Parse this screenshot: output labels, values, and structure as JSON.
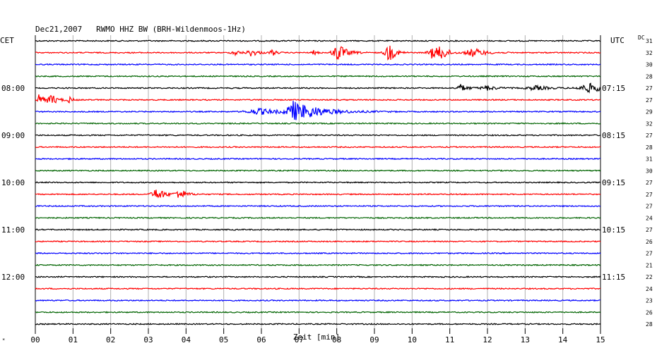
{
  "chart_data": {
    "type": "line",
    "title": "Dec21,2007   RWMO HHZ BW (BRH-Wildenmoos-1Hz)",
    "left_header": "CET",
    "right_header": "UTC",
    "dc_header": "DC",
    "xlabel": "Zeit [min]",
    "xlim": [
      0,
      15
    ],
    "x_ticks": [
      "00",
      "01",
      "02",
      "03",
      "04",
      "05",
      "06",
      "07",
      "08",
      "09",
      "10",
      "11",
      "12",
      "13",
      "14",
      "15"
    ],
    "grid": true,
    "trace_colors": [
      "#000000",
      "#ff0000",
      "#0000ff",
      "#006400"
    ],
    "hour_marks": [
      {
        "trace": 4,
        "cet": "08:00",
        "utc": "07:15"
      },
      {
        "trace": 8,
        "cet": "09:00",
        "utc": "08:15"
      },
      {
        "trace": 12,
        "cet": "10:00",
        "utc": "09:15"
      },
      {
        "trace": 16,
        "cet": "11:00",
        "utc": "10:15"
      },
      {
        "trace": 20,
        "cet": "12:00",
        "utc": "11:15"
      }
    ],
    "dc_values": [
      "31",
      "32",
      "30",
      "28",
      "27",
      "27",
      "29",
      "32",
      "27",
      "28",
      "31",
      "30",
      "27",
      "27",
      "27",
      "24",
      "27",
      "26",
      "27",
      "21",
      "22",
      "24",
      "23",
      "26",
      "28"
    ],
    "events": [
      {
        "trace": 1,
        "t": 5.3,
        "amp": 4,
        "dur": 0.15
      },
      {
        "trace": 1,
        "t": 5.75,
        "amp": 5,
        "dur": 0.2
      },
      {
        "trace": 1,
        "t": 6.3,
        "amp": 5,
        "dur": 0.1
      },
      {
        "trace": 1,
        "t": 7.4,
        "amp": 3,
        "dur": 0.1
      },
      {
        "trace": 1,
        "t": 8.05,
        "amp": 12,
        "dur": 0.25
      },
      {
        "trace": 1,
        "t": 9.4,
        "amp": 12,
        "dur": 0.2
      },
      {
        "trace": 1,
        "t": 10.55,
        "amp": 8,
        "dur": 0.2
      },
      {
        "trace": 1,
        "t": 10.8,
        "amp": 9,
        "dur": 0.2
      },
      {
        "trace": 1,
        "t": 11.65,
        "amp": 6,
        "dur": 0.35
      },
      {
        "trace": 4,
        "t": 11.3,
        "amp": 5,
        "dur": 0.2
      },
      {
        "trace": 4,
        "t": 12.0,
        "amp": 3,
        "dur": 0.3
      },
      {
        "trace": 4,
        "t": 13.3,
        "amp": 3,
        "dur": 0.4
      },
      {
        "trace": 4,
        "t": 14.75,
        "amp": 6,
        "dur": 0.5
      },
      {
        "trace": 5,
        "t": 0.1,
        "amp": 7,
        "dur": 0.2
      },
      {
        "trace": 5,
        "t": 0.45,
        "amp": 6,
        "dur": 0.2
      },
      {
        "trace": 5,
        "t": 0.9,
        "amp": 4,
        "dur": 0.1
      },
      {
        "trace": 6,
        "t": 6.0,
        "amp": 4,
        "dur": 0.6
      },
      {
        "trace": 6,
        "t": 6.85,
        "amp": 12,
        "dur": 0.25
      },
      {
        "trace": 6,
        "t": 7.3,
        "amp": 7,
        "dur": 0.8
      },
      {
        "trace": 13,
        "t": 3.25,
        "amp": 8,
        "dur": 0.25
      },
      {
        "trace": 13,
        "t": 3.85,
        "amp": 7,
        "dur": 0.2
      }
    ]
  }
}
